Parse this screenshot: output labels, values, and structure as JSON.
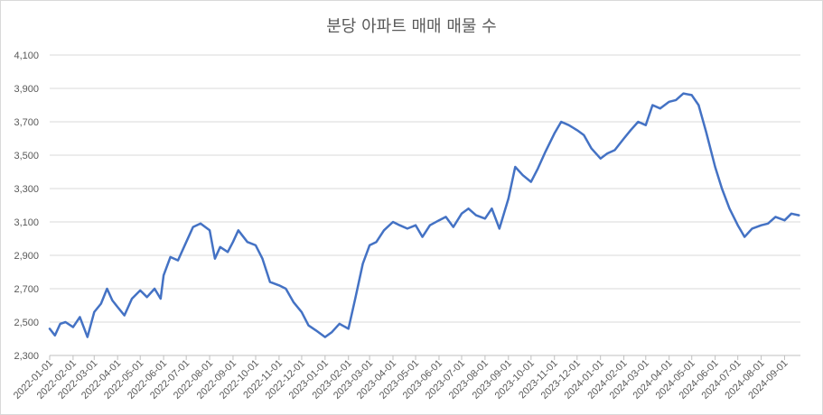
{
  "chart_data": {
    "type": "line",
    "title": "분당 아파트 매매 매물 수",
    "xlabel": "",
    "ylabel": "",
    "ylim": [
      2300,
      4100
    ],
    "y_ticks": [
      "2,300",
      "2,500",
      "2,700",
      "2,900",
      "3,100",
      "3,300",
      "3,500",
      "3,700",
      "3,900",
      "4,100"
    ],
    "y_tick_values": [
      2300,
      2500,
      2700,
      2900,
      3100,
      3300,
      3500,
      3700,
      3900,
      4100
    ],
    "x_ticks": [
      "2022-01-01",
      "2022-02-01",
      "2022-03-01",
      "2022-04-01",
      "2022-05-01",
      "2022-06-01",
      "2022-07-01",
      "2022-08-01",
      "2022-09-01",
      "2022-10-01",
      "2022-11-01",
      "2022-12-01",
      "2023-01-01",
      "2023-02-01",
      "2023-03-01",
      "2023-04-01",
      "2023-05-01",
      "2023-06-01",
      "2023-07-01",
      "2023-08-01",
      "2023-09-01",
      "2023-10-01",
      "2023-11-01",
      "2023-12-01",
      "2024-01-01",
      "2024-02-01",
      "2024-03-01",
      "2024-04-01",
      "2024-05-01",
      "2024-06-01",
      "2024-07-01",
      "2024-08-01",
      "2024-09-01"
    ],
    "grid": true,
    "legend": "none",
    "color": "#4472C4",
    "series": [
      {
        "points": [
          [
            "2022-01-01",
            2460
          ],
          [
            "2022-01-08",
            2420
          ],
          [
            "2022-01-15",
            2490
          ],
          [
            "2022-01-22",
            2500
          ],
          [
            "2022-02-01",
            2470
          ],
          [
            "2022-02-10",
            2530
          ],
          [
            "2022-02-20",
            2410
          ],
          [
            "2022-03-01",
            2560
          ],
          [
            "2022-03-10",
            2610
          ],
          [
            "2022-03-18",
            2700
          ],
          [
            "2022-03-25",
            2630
          ],
          [
            "2022-04-01",
            2590
          ],
          [
            "2022-04-10",
            2540
          ],
          [
            "2022-04-20",
            2640
          ],
          [
            "2022-05-01",
            2690
          ],
          [
            "2022-05-10",
            2650
          ],
          [
            "2022-05-20",
            2700
          ],
          [
            "2022-05-28",
            2640
          ],
          [
            "2022-06-01",
            2780
          ],
          [
            "2022-06-10",
            2890
          ],
          [
            "2022-06-20",
            2870
          ],
          [
            "2022-07-01",
            2980
          ],
          [
            "2022-07-10",
            3070
          ],
          [
            "2022-07-20",
            3090
          ],
          [
            "2022-08-01",
            3050
          ],
          [
            "2022-08-08",
            2880
          ],
          [
            "2022-08-15",
            2950
          ],
          [
            "2022-08-25",
            2920
          ],
          [
            "2022-09-01",
            2980
          ],
          [
            "2022-09-08",
            3050
          ],
          [
            "2022-09-20",
            2980
          ],
          [
            "2022-10-01",
            2960
          ],
          [
            "2022-10-10",
            2880
          ],
          [
            "2022-10-20",
            2740
          ],
          [
            "2022-11-01",
            2720
          ],
          [
            "2022-11-10",
            2700
          ],
          [
            "2022-11-20",
            2620
          ],
          [
            "2022-12-01",
            2560
          ],
          [
            "2022-12-10",
            2480
          ],
          [
            "2022-12-20",
            2450
          ],
          [
            "2023-01-01",
            2410
          ],
          [
            "2023-01-10",
            2440
          ],
          [
            "2023-01-20",
            2490
          ],
          [
            "2023-02-01",
            2460
          ],
          [
            "2023-02-10",
            2640
          ],
          [
            "2023-02-20",
            2850
          ],
          [
            "2023-03-01",
            2960
          ],
          [
            "2023-03-10",
            2980
          ],
          [
            "2023-03-20",
            3050
          ],
          [
            "2023-04-01",
            3100
          ],
          [
            "2023-04-10",
            3080
          ],
          [
            "2023-04-20",
            3060
          ],
          [
            "2023-05-01",
            3080
          ],
          [
            "2023-05-10",
            3010
          ],
          [
            "2023-05-20",
            3080
          ],
          [
            "2023-06-01",
            3110
          ],
          [
            "2023-06-10",
            3130
          ],
          [
            "2023-06-20",
            3070
          ],
          [
            "2023-07-01",
            3150
          ],
          [
            "2023-07-10",
            3180
          ],
          [
            "2023-07-20",
            3140
          ],
          [
            "2023-08-01",
            3120
          ],
          [
            "2023-08-10",
            3180
          ],
          [
            "2023-08-20",
            3060
          ],
          [
            "2023-09-01",
            3240
          ],
          [
            "2023-09-10",
            3430
          ],
          [
            "2023-09-20",
            3380
          ],
          [
            "2023-10-01",
            3340
          ],
          [
            "2023-10-10",
            3420
          ],
          [
            "2023-10-20",
            3520
          ],
          [
            "2023-11-01",
            3630
          ],
          [
            "2023-11-10",
            3700
          ],
          [
            "2023-11-20",
            3680
          ],
          [
            "2023-12-01",
            3650
          ],
          [
            "2023-12-10",
            3620
          ],
          [
            "2023-12-20",
            3540
          ],
          [
            "2024-01-01",
            3480
          ],
          [
            "2024-01-10",
            3510
          ],
          [
            "2024-01-20",
            3530
          ],
          [
            "2024-02-01",
            3600
          ],
          [
            "2024-02-10",
            3650
          ],
          [
            "2024-02-20",
            3700
          ],
          [
            "2024-03-01",
            3680
          ],
          [
            "2024-03-10",
            3800
          ],
          [
            "2024-03-20",
            3780
          ],
          [
            "2024-04-01",
            3820
          ],
          [
            "2024-04-10",
            3830
          ],
          [
            "2024-04-20",
            3870
          ],
          [
            "2024-05-01",
            3860
          ],
          [
            "2024-05-10",
            3800
          ],
          [
            "2024-05-20",
            3640
          ],
          [
            "2024-06-01",
            3430
          ],
          [
            "2024-06-10",
            3300
          ],
          [
            "2024-06-20",
            3180
          ],
          [
            "2024-07-01",
            3080
          ],
          [
            "2024-07-10",
            3010
          ],
          [
            "2024-07-20",
            3060
          ],
          [
            "2024-08-01",
            3080
          ],
          [
            "2024-08-10",
            3090
          ],
          [
            "2024-08-20",
            3130
          ],
          [
            "2024-09-01",
            3110
          ],
          [
            "2024-09-10",
            3150
          ],
          [
            "2024-09-20",
            3140
          ]
        ]
      }
    ]
  }
}
